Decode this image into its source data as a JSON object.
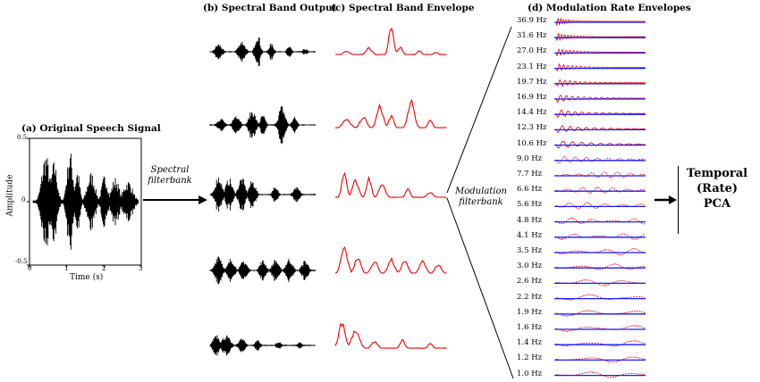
{
  "headers": {
    "original": "(a) Original Speech Signal",
    "spectral_output": "(b) Spectral Band Output",
    "spectral_envelope": "(c) Spectral Band Envelope",
    "modulation_envelopes": "(d) Modulation Rate Envelopes"
  },
  "axes": {
    "ylabel": "Amplitude",
    "xlabel": "Time (s)",
    "y_ticks": [
      "0.5",
      "0",
      "-0.5"
    ],
    "x_ticks": [
      "0",
      "1",
      "2",
      "3"
    ]
  },
  "arrows": {
    "spectral_filterbank": [
      "Spectral",
      "filterbank"
    ],
    "modulation_filterbank": [
      "Modulation",
      "filterbank"
    ]
  },
  "modulation_rates": [
    "36.9 Hz",
    "31.6 Hz",
    "27.0 Hz",
    "23.1 Hz",
    "19.7 Hz",
    "16.9 Hz",
    "14.4 Hz",
    "12.3 Hz",
    "10.6 Hz",
    "9.0 Hz",
    "7.7 Hz",
    "6.6 Hz",
    "5.6 Hz",
    "4.8 Hz",
    "4.1 Hz",
    "3.5 Hz",
    "3.0 Hz",
    "2.6 Hz",
    "2.2 Hz",
    "1.9 Hz",
    "1.6 Hz",
    "1.4 Hz",
    "1.2 Hz",
    "1.0 Hz"
  ],
  "output": {
    "lines": [
      "Temporal",
      "(Rate)",
      "PCA"
    ]
  },
  "colors": {
    "waveform": "#000000",
    "envelope": "#ee0000",
    "modulation": "#1a1aff"
  }
}
